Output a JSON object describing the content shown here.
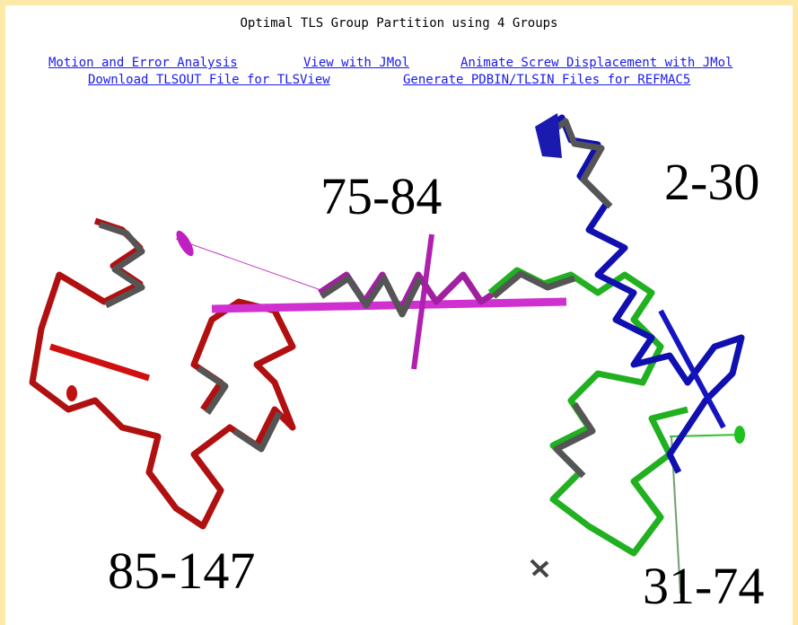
{
  "header": {
    "title": "Optimal TLS Group Partition using 4 Groups"
  },
  "links": {
    "row1": [
      "Motion and Error Analysis",
      "View with JMol",
      "Animate Screw Displacement with JMol"
    ],
    "row2": [
      "Download TLSOUT File for TLSView",
      "Generate PDBIN/TLSIN Files for REFMAC5"
    ]
  },
  "image": {
    "labels": [
      "75-84",
      "2-30",
      "85-147",
      "31-74"
    ]
  }
}
